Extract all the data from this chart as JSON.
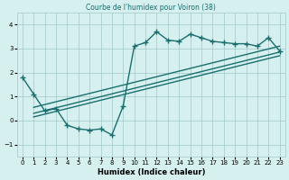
{
  "title": "Courbe de l'humidex pour Voiron (38)",
  "xlabel": "Humidex (Indice chaleur)",
  "background_color": "#d6f0f0",
  "line_color": "#1a6e6e",
  "xlim": [
    -0.5,
    23.5
  ],
  "ylim": [
    -1.5,
    4.5
  ],
  "xticks": [
    0,
    1,
    2,
    3,
    4,
    5,
    6,
    7,
    8,
    9,
    10,
    11,
    12,
    13,
    14,
    15,
    16,
    17,
    18,
    19,
    20,
    21,
    22,
    23
  ],
  "yticks": [
    -1,
    0,
    1,
    2,
    3,
    4
  ],
  "main_line_x": [
    0,
    1,
    2,
    3,
    4,
    5,
    6,
    7,
    8,
    9,
    10,
    11,
    12,
    13,
    14,
    15,
    16,
    17,
    18,
    19,
    20,
    21,
    22,
    23
  ],
  "main_line_y": [
    1.8,
    1.1,
    0.4,
    0.5,
    -0.2,
    -0.35,
    -0.4,
    -0.35,
    -0.6,
    0.6,
    3.1,
    3.25,
    3.7,
    3.35,
    3.3,
    3.6,
    3.45,
    3.3,
    3.25,
    3.2,
    3.2,
    3.1,
    3.45,
    2.9
  ],
  "reg_line1_x": [
    1,
    23
  ],
  "reg_line1_y": [
    0.55,
    3.1
  ],
  "reg_line2_x": [
    1,
    23
  ],
  "reg_line2_y": [
    0.3,
    2.85
  ],
  "reg_line3_x": [
    1,
    23
  ],
  "reg_line3_y": [
    0.15,
    2.7
  ]
}
